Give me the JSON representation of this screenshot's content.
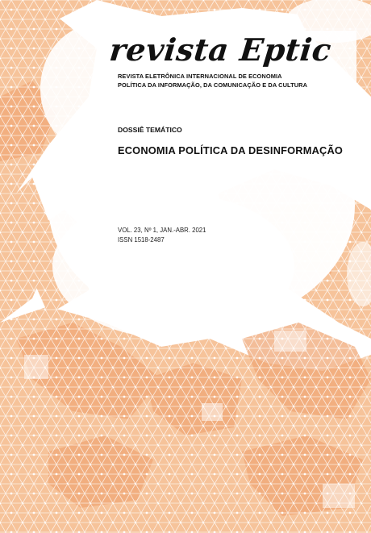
{
  "cover": {
    "journal_logo": "revista Eptic",
    "subtitle_line1": "REVISTA ELETRÔNICA INTERNACIONAL DE ECONOMIA",
    "subtitle_line2": "POLÍTICA DA INFORMAÇÃO, DA COMUNICAÇÃO E DA CULTURA",
    "section_label": "DOSSIÊ TEMÁTICO",
    "dossier_title": "ECONOMIA POLÍTICA DA DESINFORMAÇÃO",
    "volume_line": "VOL. 23, Nº 1,  JAN.-ABR. 2021",
    "issn_line": "ISSN 1518-2487"
  },
  "colors": {
    "background_art": "#f6c39a",
    "background_art_dark": "#f0a877",
    "grid_lines": "#ffffff",
    "text": "#111111"
  }
}
